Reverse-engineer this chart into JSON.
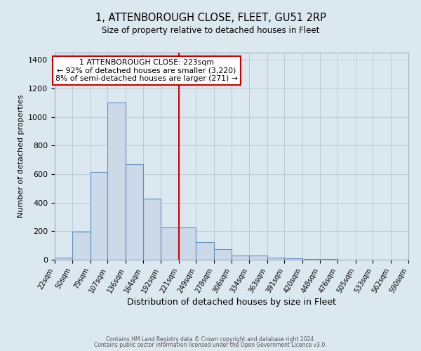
{
  "title": "1, ATTENBOROUGH CLOSE, FLEET, GU51 2RP",
  "subtitle": "Size of property relative to detached houses in Fleet",
  "xlabel": "Distribution of detached houses by size in Fleet",
  "ylabel": "Number of detached properties",
  "bin_edges": [
    22,
    50,
    79,
    107,
    136,
    164,
    192,
    221,
    249,
    278,
    306,
    334,
    363,
    391,
    420,
    448,
    476,
    505,
    533,
    562,
    590
  ],
  "bar_heights": [
    15,
    195,
    615,
    1100,
    670,
    430,
    225,
    225,
    125,
    75,
    30,
    30,
    15,
    10,
    5,
    3,
    2,
    1,
    1,
    1
  ],
  "bar_color": "#ccd9e8",
  "bar_edge_color": "#6090c0",
  "ref_line_x": 221,
  "ref_line_color": "#cc0000",
  "annotation_title": "1 ATTENBOROUGH CLOSE: 223sqm",
  "annotation_line1": "← 92% of detached houses are smaller (3,220)",
  "annotation_line2": "8% of semi-detached houses are larger (271) →",
  "annotation_box_color": "#ffffff",
  "annotation_box_edge": "#cc0000",
  "ylim": [
    0,
    1450
  ],
  "background_color": "#dce8f0",
  "plot_bg_color": "#dce8f0",
  "footer1": "Contains HM Land Registry data © Crown copyright and database right 2024.",
  "footer2": "Contains public sector information licensed under the Open Government Licence v3.0."
}
